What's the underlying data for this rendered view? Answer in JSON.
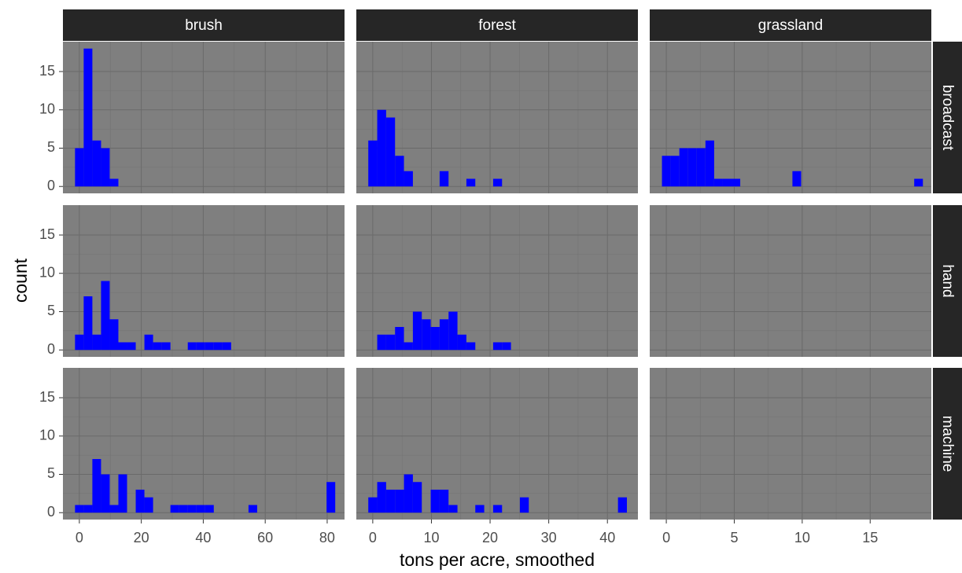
{
  "chart_data": {
    "type": "histogram",
    "x_label": "tons per acre, smoothed",
    "y_label": "count",
    "color": "#0000ff",
    "grid": true,
    "ylim": [
      -0.9,
      18.9
    ],
    "yticks": [
      0,
      5,
      10,
      15
    ],
    "rows": [
      "broadcast",
      "hand",
      "machine"
    ],
    "columns": [
      {
        "name": "brush",
        "xlim": [
          -5.3,
          85.6
        ],
        "xticks": [
          0,
          20,
          40,
          60,
          80
        ],
        "bins": [
          -1.4,
          1.4,
          4.2,
          7,
          9.8,
          12.6,
          15.4,
          18.2,
          21,
          23.8,
          26.6,
          29.4,
          32.2,
          35,
          37.8,
          40.6,
          43.4,
          46.2,
          49,
          51.8,
          54.6,
          57.4,
          60.2,
          63,
          65.8,
          68.6,
          71.4,
          74.2,
          77,
          79.8,
          82.6
        ],
        "counts": [
          [
            5,
            18,
            6,
            5,
            1,
            0,
            0,
            0,
            0,
            0,
            0,
            0,
            0,
            0,
            0,
            0,
            0,
            0,
            0,
            0,
            0,
            0,
            0,
            0,
            0,
            0,
            0,
            0,
            0,
            0
          ],
          [
            2,
            7,
            2,
            9,
            4,
            1,
            1,
            0,
            2,
            1,
            1,
            0,
            0,
            1,
            1,
            1,
            1,
            1,
            0,
            0,
            0,
            0,
            0,
            0,
            0,
            0,
            0,
            0,
            0,
            0
          ],
          [
            1,
            1,
            7,
            5,
            1,
            5,
            0,
            3,
            2,
            0,
            0,
            1,
            1,
            1,
            1,
            1,
            0,
            0,
            0,
            0,
            1,
            0,
            0,
            0,
            0,
            0,
            0,
            0,
            0,
            4
          ]
        ]
      },
      {
        "name": "forest",
        "xlim": [
          -2.8,
          45.2
        ],
        "xticks": [
          0,
          10,
          20,
          30,
          40
        ],
        "bins": [
          -0.76,
          0.76,
          2.28,
          3.8,
          5.32,
          6.84,
          8.36,
          9.88,
          11.4,
          12.92,
          14.44,
          15.96,
          17.48,
          19,
          20.52,
          22.04,
          23.56,
          25.08,
          26.6,
          28.12,
          29.64,
          31.16,
          32.68,
          34.2,
          35.72,
          37.24,
          38.76,
          40.28,
          41.8,
          43.32,
          44.84
        ],
        "counts": [
          [
            6,
            10,
            9,
            4,
            2,
            0,
            0,
            0,
            2,
            0,
            0,
            1,
            0,
            0,
            1,
            0,
            0,
            0,
            0,
            0,
            0,
            0,
            0,
            0,
            0,
            0,
            0,
            0,
            0,
            0
          ],
          [
            0,
            2,
            2,
            3,
            1,
            5,
            4,
            3,
            4,
            5,
            2,
            1,
            0,
            0,
            1,
            1,
            0,
            0,
            0,
            0,
            0,
            0,
            0,
            0,
            0,
            0,
            0,
            0,
            0,
            0
          ],
          [
            2,
            4,
            3,
            3,
            5,
            4,
            0,
            3,
            3,
            1,
            0,
            0,
            1,
            0,
            1,
            0,
            0,
            2,
            0,
            0,
            0,
            0,
            0,
            0,
            0,
            0,
            0,
            0,
            2,
            0
          ]
        ]
      },
      {
        "name": "grassland",
        "xlim": [
          -1.22,
          19.5
        ],
        "xticks": [
          0,
          5,
          10,
          15
        ],
        "bins": [
          -0.32,
          0.32,
          0.96,
          1.6,
          2.24,
          2.88,
          3.52,
          4.16,
          4.8,
          5.44,
          6.08,
          6.72,
          7.36,
          8,
          8.64,
          9.28,
          9.92,
          10.56,
          11.2,
          11.84,
          12.48,
          13.12,
          13.76,
          14.4,
          15.04,
          15.68,
          16.32,
          16.96,
          17.6,
          18.24,
          18.88
        ],
        "counts": [
          [
            4,
            4,
            5,
            5,
            5,
            6,
            1,
            1,
            1,
            0,
            0,
            0,
            0,
            0,
            0,
            2,
            0,
            0,
            0,
            0,
            0,
            0,
            0,
            0,
            0,
            0,
            0,
            0,
            0,
            1
          ],
          [
            0,
            0,
            0,
            0,
            0,
            0,
            0,
            0,
            0,
            0,
            0,
            0,
            0,
            0,
            0,
            0,
            0,
            0,
            0,
            0,
            0,
            0,
            0,
            0,
            0,
            0,
            0,
            0,
            0,
            0
          ],
          [
            0,
            0,
            0,
            0,
            0,
            0,
            0,
            0,
            0,
            0,
            0,
            0,
            0,
            0,
            0,
            0,
            0,
            0,
            0,
            0,
            0,
            0,
            0,
            0,
            0,
            0,
            0,
            0,
            0,
            0
          ]
        ]
      }
    ]
  }
}
